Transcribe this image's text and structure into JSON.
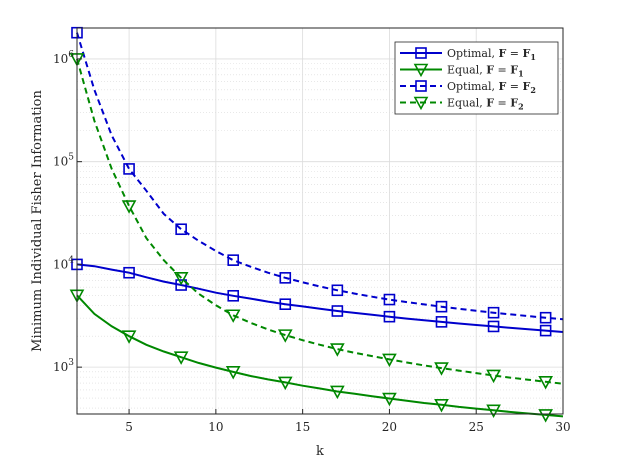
{
  "chart_data": {
    "type": "line",
    "title": "",
    "xlabel": "k",
    "ylabel": "Minimum Individual Fisher Information",
    "xlim": [
      2,
      30
    ],
    "ylim": [
      350,
      2000000
    ],
    "yscale": "log",
    "grid": true,
    "minor_grid": true,
    "legend_position": "top-right",
    "x_ticks": [
      {
        "value": 5,
        "label": "5"
      },
      {
        "value": 10,
        "label": "10"
      },
      {
        "value": 15,
        "label": "15"
      },
      {
        "value": 20,
        "label": "20"
      },
      {
        "value": 25,
        "label": "25"
      },
      {
        "value": 30,
        "label": "30"
      }
    ],
    "y_ticks": [
      {
        "value": 1000,
        "base": "10",
        "exp": "3"
      },
      {
        "value": 10000,
        "base": "10",
        "exp": "4"
      },
      {
        "value": 100000,
        "base": "10",
        "exp": "5"
      },
      {
        "value": 1000000,
        "base": "10",
        "exp": "6"
      }
    ],
    "series": [
      {
        "name_parts": [
          "Optimal, ",
          "F",
          " = ",
          "F",
          "1"
        ],
        "color": "#0000CC",
        "dash": "solid",
        "marker": "square",
        "line_x": [
          2,
          3,
          4,
          5,
          6,
          7,
          8,
          9,
          10,
          11,
          12,
          13,
          14,
          15,
          16,
          17,
          18,
          19,
          20,
          21,
          22,
          23,
          24,
          25,
          26,
          27,
          28,
          29,
          30
        ],
        "line_y": [
          10000,
          9600,
          8900,
          8300,
          7500,
          6800,
          6300,
          5800,
          5300,
          4950,
          4650,
          4350,
          4100,
          3900,
          3700,
          3520,
          3370,
          3230,
          3100,
          2970,
          2860,
          2760,
          2660,
          2570,
          2490,
          2410,
          2340,
          2270,
          2200
        ],
        "marker_x": [
          2,
          5,
          8,
          11,
          14,
          17,
          20,
          23,
          26,
          29
        ],
        "marker_y": [
          10000,
          8300,
          6300,
          4950,
          4100,
          3520,
          3100,
          2760,
          2490,
          2270
        ]
      },
      {
        "name_parts": [
          "Equal, ",
          "F",
          " = ",
          "F",
          "1"
        ],
        "color": "#008800",
        "dash": "solid",
        "marker": "triangle-down",
        "line_x": [
          2,
          3,
          4,
          5,
          6,
          7,
          8,
          9,
          10,
          11,
          12,
          13,
          14,
          15,
          16,
          17,
          18,
          19,
          20,
          21,
          22,
          23,
          24,
          25,
          26,
          27,
          28,
          29,
          30
        ],
        "line_y": [
          5000,
          3300,
          2500,
          2000,
          1650,
          1420,
          1250,
          1100,
          990,
          900,
          820,
          760,
          710,
          660,
          620,
          580,
          550,
          520,
          495,
          470,
          448,
          430,
          410,
          395,
          380,
          366,
          354,
          343,
          332
        ],
        "marker_x": [
          2,
          5,
          8,
          11,
          14,
          17,
          20,
          23,
          26,
          29
        ],
        "marker_y": [
          5000,
          2000,
          1250,
          900,
          710,
          580,
          495,
          430,
          380,
          343
        ]
      },
      {
        "name_parts": [
          "Optimal, ",
          "F",
          " = ",
          "F",
          "2"
        ],
        "color": "#0000CC",
        "dash": "dashed",
        "marker": "square",
        "line_x": [
          2,
          3,
          4,
          5,
          6,
          7,
          8,
          9,
          10,
          11,
          12,
          13,
          14,
          15,
          16,
          17,
          18,
          19,
          20,
          21,
          22,
          23,
          24,
          25,
          26,
          27,
          28,
          29,
          30
        ],
        "line_y": [
          1800000,
          500000,
          180000,
          85000,
          52000,
          31000,
          22000,
          17000,
          13500,
          11000,
          9500,
          8300,
          7400,
          6700,
          6100,
          5600,
          5200,
          4850,
          4550,
          4300,
          4080,
          3880,
          3700,
          3540,
          3390,
          3260,
          3140,
          3030,
          2930
        ],
        "marker_x": [
          2,
          5,
          8,
          11,
          14,
          17,
          20,
          23,
          26,
          29
        ],
        "marker_y": [
          1800000,
          85000,
          22000,
          11000,
          7400,
          5600,
          4550,
          3880,
          3390,
          3030
        ]
      },
      {
        "name_parts": [
          "Equal, ",
          "F",
          " = ",
          "F",
          "2"
        ],
        "color": "#008800",
        "dash": "dashed",
        "marker": "triangle-down",
        "line_x": [
          2,
          3,
          4,
          5,
          6,
          7,
          8,
          9,
          10,
          11,
          12,
          13,
          14,
          15,
          16,
          17,
          18,
          19,
          20,
          21,
          22,
          23,
          24,
          25,
          26,
          27,
          28,
          29,
          30
        ],
        "line_y": [
          1000000,
          250000,
          85000,
          37000,
          18000,
          11000,
          7400,
          5200,
          4000,
          3200,
          2700,
          2330,
          2050,
          1830,
          1650,
          1500,
          1380,
          1280,
          1190,
          1110,
          1040,
          980,
          925,
          875,
          830,
          790,
          755,
          720,
          690
        ],
        "marker_x": [
          2,
          5,
          8,
          11,
          14,
          17,
          20,
          23,
          26,
          29
        ],
        "marker_y": [
          1000000,
          37000,
          7400,
          3200,
          2050,
          1500,
          1190,
          980,
          830,
          720
        ]
      }
    ]
  }
}
